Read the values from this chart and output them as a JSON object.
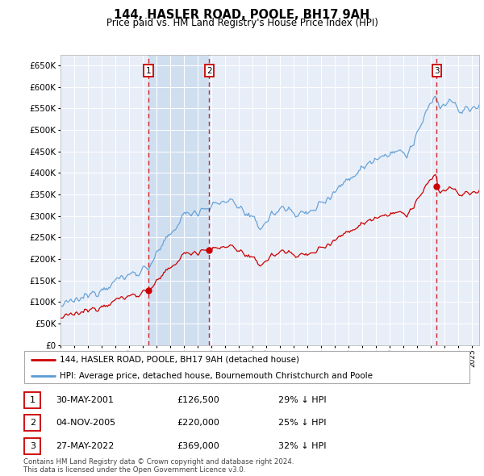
{
  "title": "144, HASLER ROAD, POOLE, BH17 9AH",
  "subtitle": "Price paid vs. HM Land Registry's House Price Index (HPI)",
  "ylim": [
    0,
    675000
  ],
  "yticks": [
    0,
    50000,
    100000,
    150000,
    200000,
    250000,
    300000,
    350000,
    400000,
    450000,
    500000,
    550000,
    600000,
    650000
  ],
  "background_color": "#ffffff",
  "chart_bg": "#e8eef8",
  "grid_color": "#ffffff",
  "hpi_color": "#5b9bd5",
  "price_color": "#cc0000",
  "vline_color": "#cc0000",
  "annotation_box_color": "#cc0000",
  "shade_color": "#d0dff0",
  "transactions": [
    {
      "date_num": 2001.41,
      "price": 126500,
      "label": "1"
    },
    {
      "date_num": 2005.84,
      "price": 220000,
      "label": "2"
    },
    {
      "date_num": 2022.41,
      "price": 369000,
      "label": "3"
    }
  ],
  "legend_entries": [
    "144, HASLER ROAD, POOLE, BH17 9AH (detached house)",
    "HPI: Average price, detached house, Bournemouth Christchurch and Poole"
  ],
  "table_rows": [
    {
      "num": "1",
      "date": "30-MAY-2001",
      "price": "£126,500",
      "hpi": "29% ↓ HPI"
    },
    {
      "num": "2",
      "date": "04-NOV-2005",
      "price": "£220,000",
      "hpi": "25% ↓ HPI"
    },
    {
      "num": "3",
      "date": "27-MAY-2022",
      "price": "£369,000",
      "hpi": "32% ↓ HPI"
    }
  ],
  "footer": "Contains HM Land Registry data © Crown copyright and database right 2024.\nThis data is licensed under the Open Government Licence v3.0.",
  "xmin": 1995.0,
  "xmax": 2025.5
}
